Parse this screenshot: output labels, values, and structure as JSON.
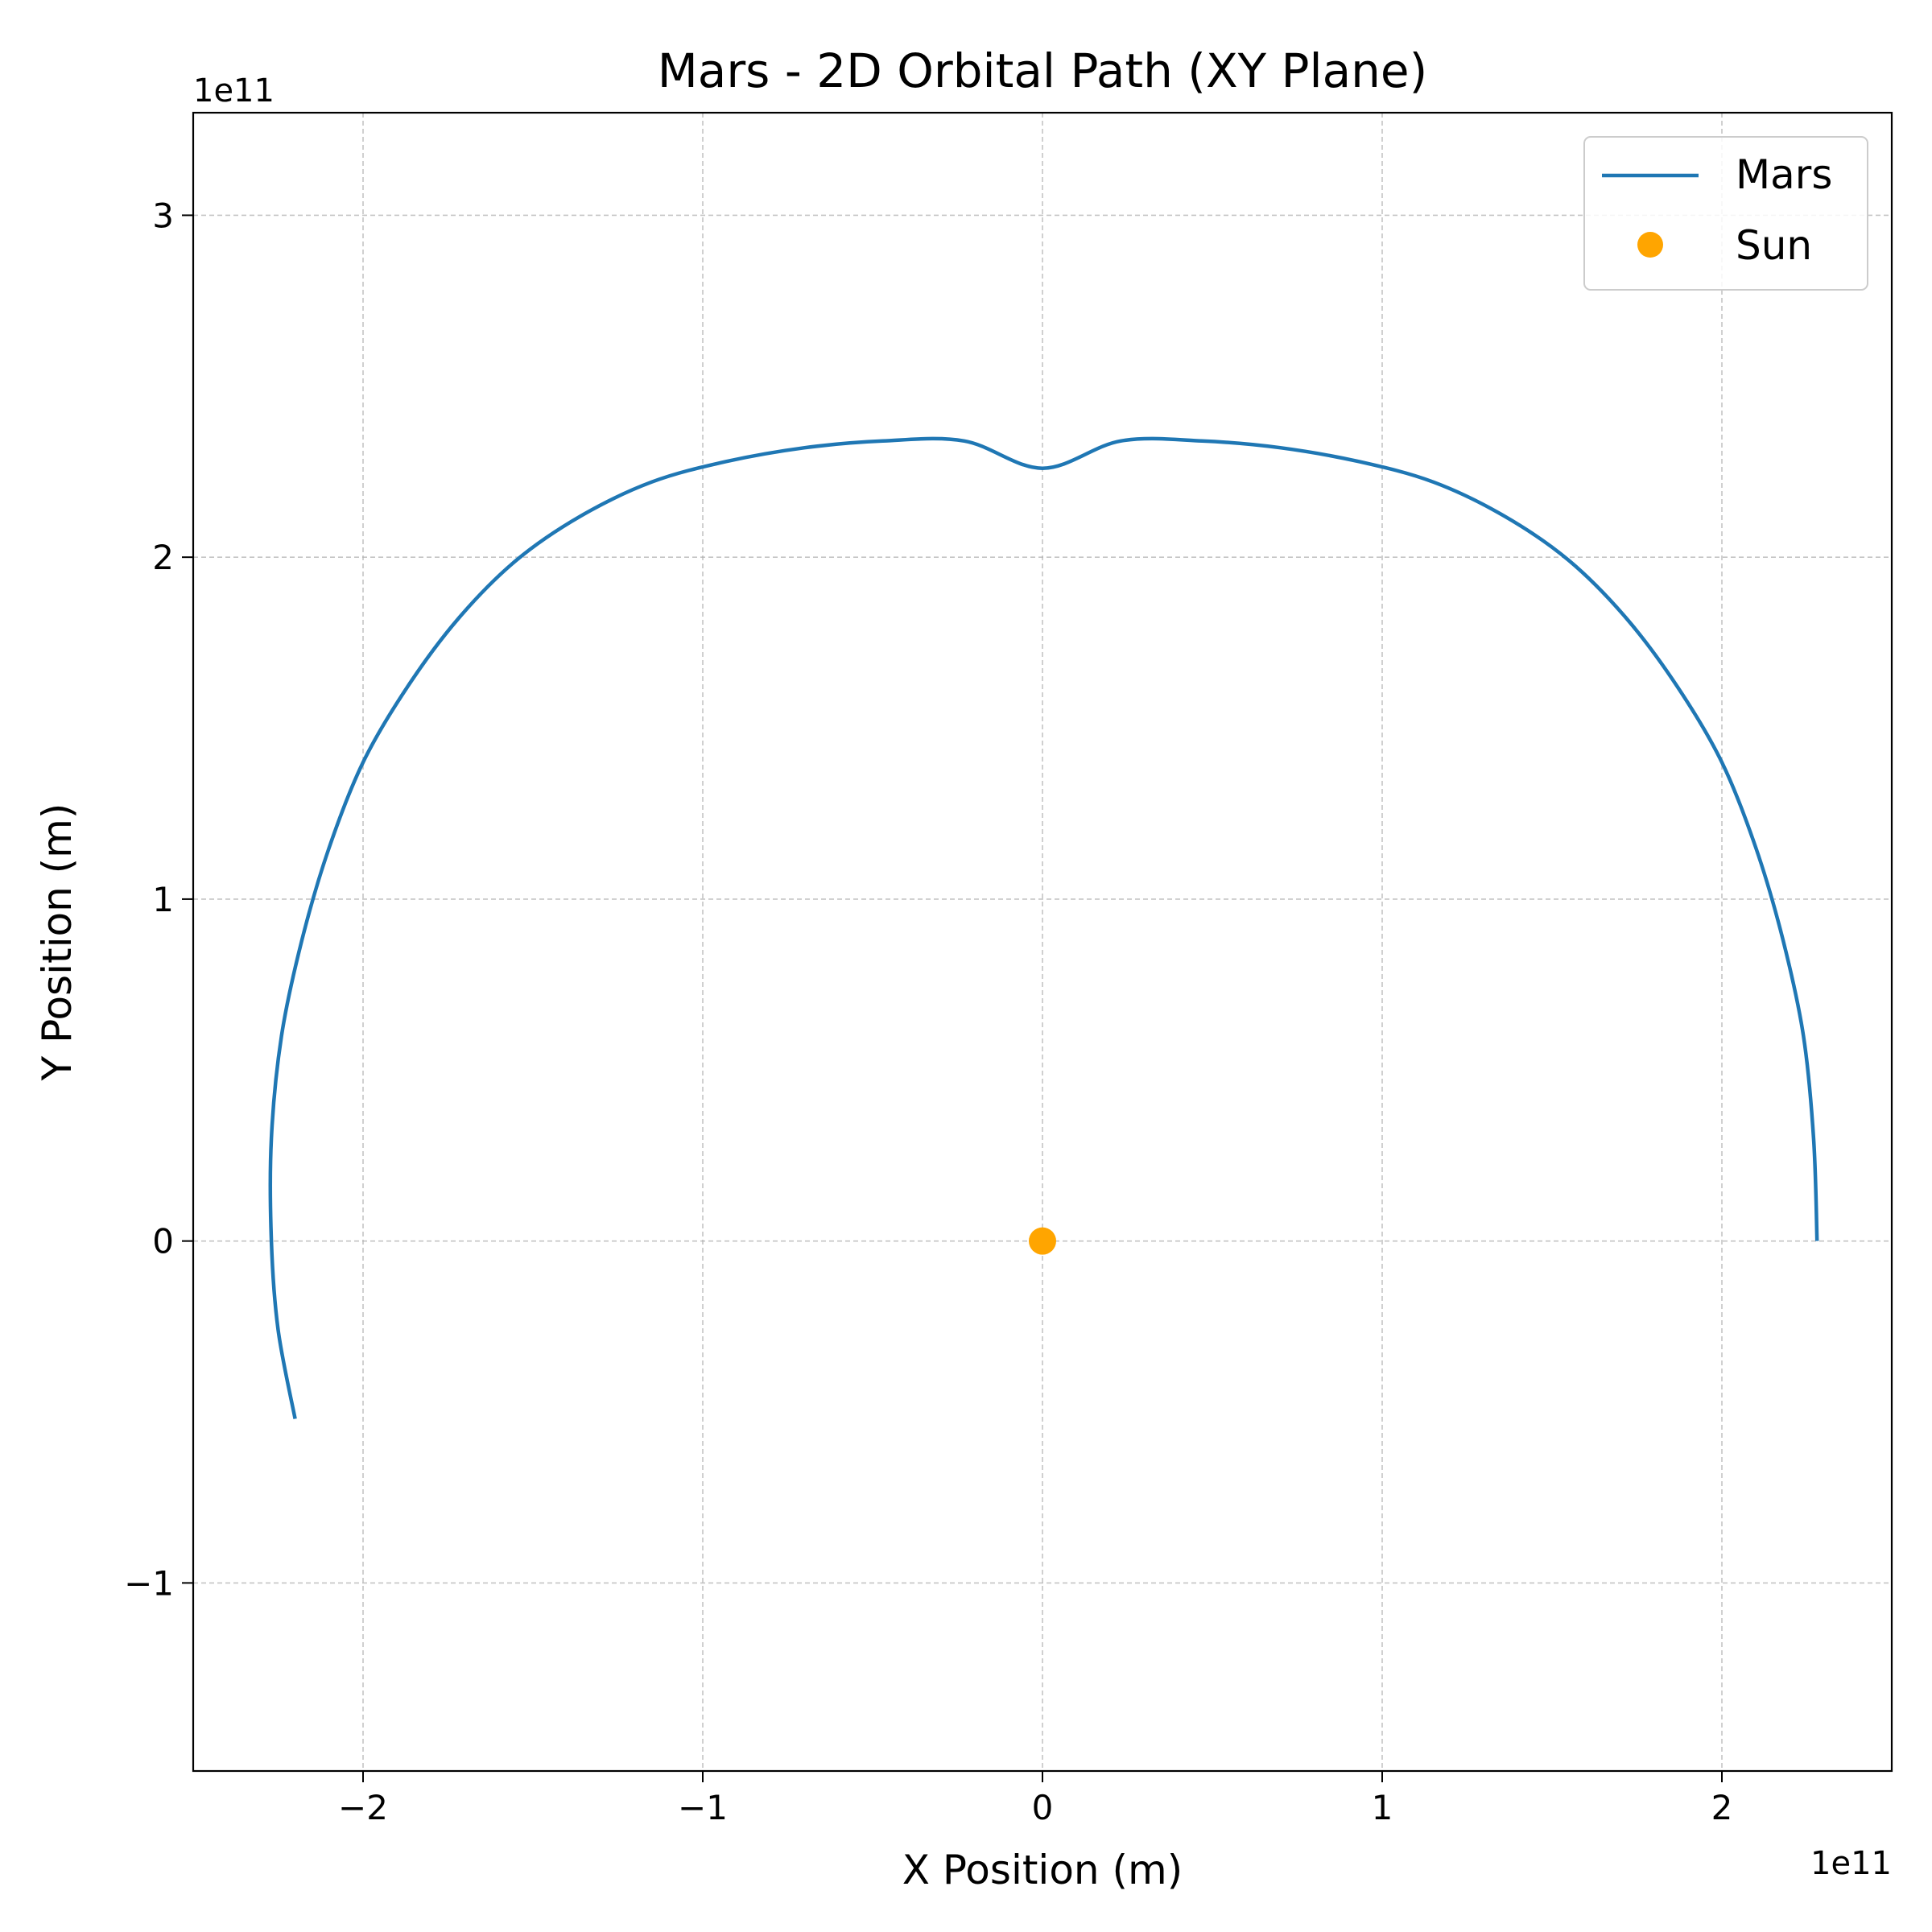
{
  "chart_data": {
    "type": "line",
    "title": "Mars - 2D Orbital Path (XY Plane)",
    "xlabel": "X Position (m)",
    "ylabel": "Y Position (m)",
    "x_offset_label": "1e11",
    "y_offset_label": "1e11",
    "xlim": [
      -2.5,
      2.5
    ],
    "ylim": [
      -1.55,
      3.3
    ],
    "x_ticks": [
      -2,
      -1,
      0,
      1,
      2
    ],
    "x_tick_labels": [
      "−2",
      "−1",
      "0",
      "1",
      "2"
    ],
    "y_ticks": [
      -1,
      0,
      1,
      2,
      3
    ],
    "y_tick_labels": [
      "−1",
      "0",
      "1",
      "2",
      "3"
    ],
    "grid": true,
    "legend_position": "top-right",
    "series": [
      {
        "name": "Mars",
        "color": "#1f77b4",
        "style": "line",
        "x": [
          2.28,
          2.27,
          2.24,
          2.18,
          2.1,
          2.0,
          1.87,
          1.72,
          1.55,
          1.36,
          1.15,
          0.93,
          0.7,
          0.47,
          0.23,
          0.0,
          -0.23,
          -0.47,
          -0.7,
          -0.93,
          -1.15,
          -1.36,
          -1.55,
          -1.72,
          -1.87,
          -2.0,
          -2.1,
          -2.18,
          -2.24,
          -2.27,
          -2.27,
          -2.25,
          -2.2
        ],
        "y": [
          0.0,
          0.3,
          0.6,
          0.88,
          1.15,
          1.4,
          1.62,
          1.82,
          1.99,
          2.12,
          2.22,
          2.28,
          2.32,
          2.34,
          2.34,
          2.26,
          2.34,
          2.34,
          2.32,
          2.28,
          2.22,
          2.12,
          1.99,
          1.82,
          1.62,
          1.4,
          1.15,
          0.88,
          0.6,
          0.3,
          0.0,
          -0.26,
          -0.52
        ]
      },
      {
        "name": "Sun",
        "color": "#ffa500",
        "style": "marker",
        "x": [
          0
        ],
        "y": [
          0
        ]
      }
    ]
  }
}
